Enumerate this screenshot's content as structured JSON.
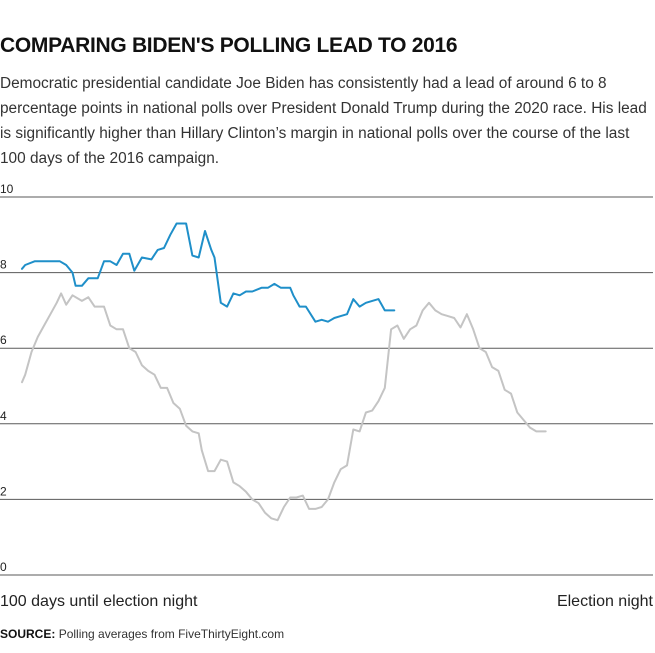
{
  "title": "COMPARING BIDEN'S POLLING LEAD TO 2016",
  "subtitle": "Democratic presidential candidate Joe Biden has consistently had a lead of around 6 to 8 percentage points in national polls over President Donald Trump during the 2020 race. His lead is significantly higher than Hillary Clinton’s margin in national polls over the course of the last 100 days of the 2016 campaign.",
  "source_label": "SOURCE:",
  "source_text": "Polling averages from FiveThirtyEight.com",
  "colors": {
    "biden": "#1f8fc9",
    "clinton": "#c4c4c4",
    "grid": "#5a5a5a",
    "text": "#222222"
  },
  "chart_data": {
    "type": "line",
    "title": "",
    "xlabel_left": "100 days until election night",
    "xlabel_right": "Election night",
    "x_range": [
      100,
      0
    ],
    "ylim": [
      0,
      10
    ],
    "yticks": [
      0,
      2,
      4,
      6,
      8,
      10
    ],
    "grid": true,
    "legend": "none",
    "series": [
      {
        "color": "#1f8fc9",
        "points": [
          [
            100,
            8.1
          ],
          [
            99.5,
            8.2
          ],
          [
            98,
            8.3
          ],
          [
            96,
            8.3
          ],
          [
            94,
            8.3
          ],
          [
            93,
            8.2
          ],
          [
            92,
            8.0
          ],
          [
            91.5,
            7.65
          ],
          [
            90.5,
            7.65
          ],
          [
            89.5,
            7.85
          ],
          [
            88,
            7.85
          ],
          [
            87,
            8.3
          ],
          [
            86,
            8.3
          ],
          [
            85,
            8.2
          ],
          [
            84,
            8.5
          ],
          [
            83,
            8.5
          ],
          [
            82.2,
            8.05
          ],
          [
            81,
            8.4
          ],
          [
            79.5,
            8.35
          ],
          [
            78.5,
            8.6
          ],
          [
            77.5,
            8.65
          ],
          [
            76.5,
            9.0
          ],
          [
            75.5,
            9.3
          ],
          [
            74,
            9.3
          ],
          [
            73,
            8.45
          ],
          [
            72,
            8.4
          ],
          [
            71,
            9.1
          ],
          [
            70,
            8.6
          ],
          [
            69.5,
            8.4
          ],
          [
            68.5,
            7.2
          ],
          [
            67.5,
            7.1
          ],
          [
            66.5,
            7.45
          ],
          [
            65.5,
            7.4
          ],
          [
            64.5,
            7.5
          ],
          [
            63.5,
            7.5
          ],
          [
            62,
            7.6
          ],
          [
            61,
            7.6
          ],
          [
            60,
            7.7
          ],
          [
            59,
            7.6
          ],
          [
            57.5,
            7.6
          ],
          [
            57,
            7.4
          ],
          [
            56,
            7.1
          ],
          [
            55,
            7.1
          ],
          [
            53.5,
            6.7
          ],
          [
            52.5,
            6.75
          ],
          [
            51.5,
            6.7
          ],
          [
            50.5,
            6.8
          ],
          [
            49.5,
            6.85
          ],
          [
            48.5,
            6.9
          ],
          [
            47.5,
            7.3
          ],
          [
            46.5,
            7.1
          ],
          [
            45.5,
            7.2
          ],
          [
            44.5,
            7.25
          ],
          [
            43.5,
            7.3
          ],
          [
            42.5,
            7.0
          ],
          [
            41,
            7.0
          ]
        ]
      },
      {
        "color": "#c4c4c4",
        "points": [
          [
            100,
            5.1
          ],
          [
            99.5,
            5.3
          ],
          [
            98.5,
            5.9
          ],
          [
            97.5,
            6.3
          ],
          [
            96.5,
            6.6
          ],
          [
            95.5,
            6.9
          ],
          [
            94.5,
            7.2
          ],
          [
            93.8,
            7.45
          ],
          [
            93,
            7.15
          ],
          [
            92,
            7.4
          ],
          [
            90.5,
            7.25
          ],
          [
            89.5,
            7.35
          ],
          [
            88.5,
            7.1
          ],
          [
            87,
            7.1
          ],
          [
            86,
            6.6
          ],
          [
            85,
            6.5
          ],
          [
            84,
            6.5
          ],
          [
            83,
            6.0
          ],
          [
            82,
            5.9
          ],
          [
            81,
            5.55
          ],
          [
            80,
            5.4
          ],
          [
            79,
            5.3
          ],
          [
            78,
            4.95
          ],
          [
            77,
            4.95
          ],
          [
            76,
            4.55
          ],
          [
            75,
            4.4
          ],
          [
            74,
            3.95
          ],
          [
            73,
            3.8
          ],
          [
            72,
            3.75
          ],
          [
            71.5,
            3.3
          ],
          [
            70.5,
            2.75
          ],
          [
            69.5,
            2.75
          ],
          [
            68.5,
            3.05
          ],
          [
            67.5,
            3.0
          ],
          [
            66.5,
            2.45
          ],
          [
            65.5,
            2.35
          ],
          [
            64.5,
            2.2
          ],
          [
            63.5,
            2.0
          ],
          [
            62.5,
            1.9
          ],
          [
            61.5,
            1.65
          ],
          [
            60.5,
            1.5
          ],
          [
            59.5,
            1.45
          ],
          [
            58.5,
            1.8
          ],
          [
            57.5,
            2.05
          ],
          [
            56.5,
            2.05
          ],
          [
            55.5,
            2.1
          ],
          [
            54.5,
            1.75
          ],
          [
            53.5,
            1.75
          ],
          [
            52.5,
            1.8
          ],
          [
            51.5,
            2.0
          ],
          [
            50.5,
            2.45
          ],
          [
            49.5,
            2.8
          ],
          [
            48.5,
            2.9
          ],
          [
            47.5,
            3.85
          ],
          [
            46.5,
            3.8
          ],
          [
            45.5,
            4.3
          ],
          [
            44.5,
            4.35
          ],
          [
            43.5,
            4.6
          ],
          [
            42.5,
            4.95
          ],
          [
            41.5,
            6.5
          ],
          [
            40.5,
            6.6
          ],
          [
            39.5,
            6.25
          ],
          [
            38.5,
            6.5
          ],
          [
            37.5,
            6.6
          ],
          [
            36.5,
            7.0
          ],
          [
            35.5,
            7.2
          ],
          [
            34.5,
            7.0
          ],
          [
            33.5,
            6.9
          ],
          [
            32.5,
            6.85
          ],
          [
            31.5,
            6.8
          ],
          [
            30.5,
            6.55
          ],
          [
            29.5,
            6.9
          ],
          [
            28.5,
            6.5
          ],
          [
            27.5,
            6.0
          ],
          [
            26.5,
            5.9
          ],
          [
            25.5,
            5.5
          ],
          [
            24.5,
            5.4
          ],
          [
            23.5,
            4.9
          ],
          [
            22.5,
            4.8
          ],
          [
            21.5,
            4.3
          ],
          [
            20.5,
            4.1
          ],
          [
            19.5,
            3.9
          ],
          [
            18.5,
            3.8
          ],
          [
            17,
            3.8
          ]
        ]
      }
    ]
  }
}
